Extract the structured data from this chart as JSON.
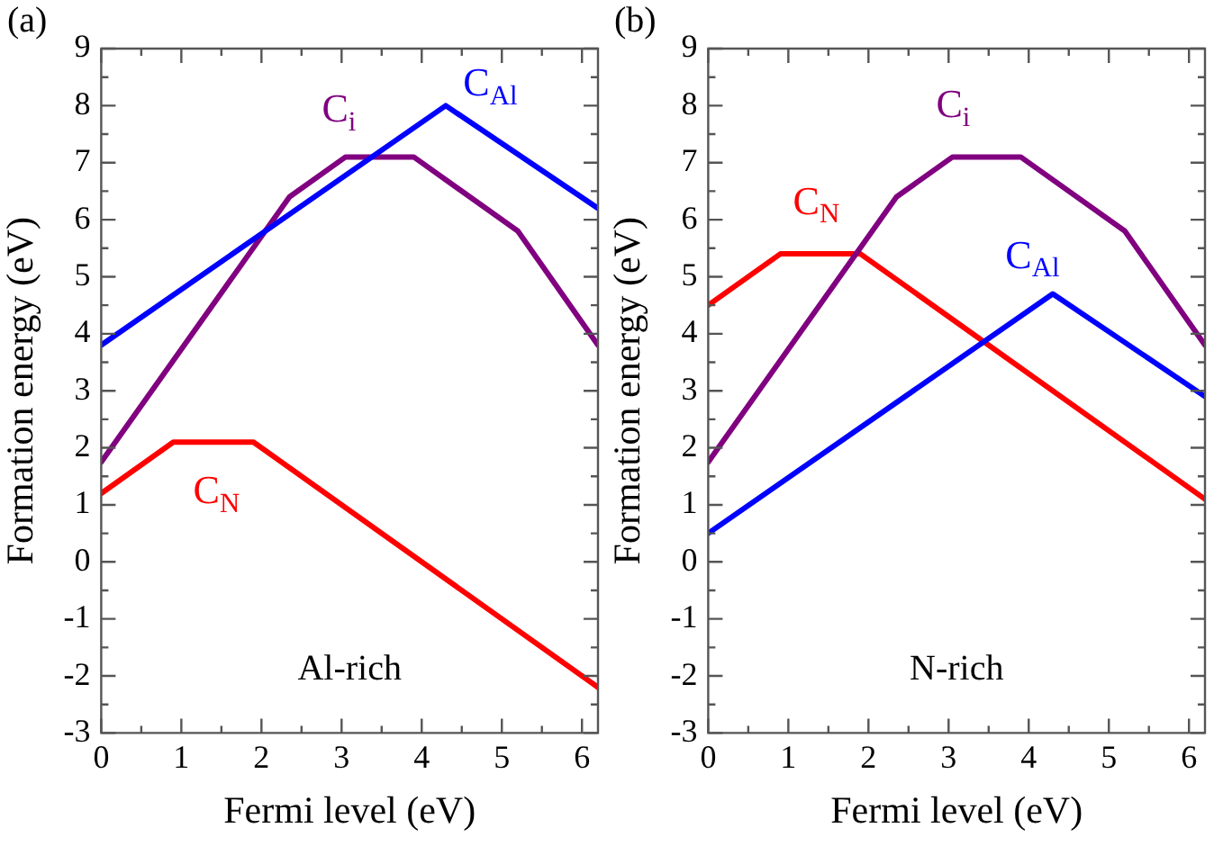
{
  "chart_data": [
    {
      "type": "line",
      "title": "(a)",
      "xlabel": "Fermi level (eV)",
      "ylabel": "Formation energy (eV)",
      "xlim": [
        0,
        6.2
      ],
      "ylim": [
        -3,
        9
      ],
      "xticks": [
        0,
        1,
        2,
        3,
        4,
        5,
        6
      ],
      "yticks": [
        -3,
        -2,
        -1,
        0,
        1,
        2,
        3,
        4,
        5,
        6,
        7,
        8,
        9
      ],
      "grid": false,
      "legend": false,
      "marker": "none",
      "line_style": "solid",
      "annotations": [
        "Al-rich"
      ],
      "series": [
        {
          "name": "C$_{Al}$",
          "color": "#0000ff",
          "x": [
            0,
            4.3,
            6.2
          ],
          "values": [
            3.8,
            8.0,
            6.2
          ]
        },
        {
          "name": "C$_{i}$",
          "color": "#800080",
          "x": [
            0,
            2.35,
            3.05,
            3.9,
            5.2,
            6.2
          ],
          "values": [
            1.75,
            6.4,
            7.1,
            7.1,
            5.8,
            3.8
          ]
        },
        {
          "name": "C$_{N}$",
          "color": "#ff0000",
          "x": [
            0,
            0.9,
            1.9,
            6.2
          ],
          "values": [
            1.2,
            2.1,
            2.1,
            -2.2
          ]
        }
      ]
    },
    {
      "type": "line",
      "title": "(b)",
      "xlabel": "Fermi level (eV)",
      "ylabel": "Formation energy (eV)",
      "xlim": [
        0,
        6.2
      ],
      "ylim": [
        -3,
        9
      ],
      "xticks": [
        0,
        1,
        2,
        3,
        4,
        5,
        6
      ],
      "yticks": [
        -3,
        -2,
        -1,
        0,
        1,
        2,
        3,
        4,
        5,
        6,
        7,
        8,
        9
      ],
      "grid": false,
      "legend": false,
      "marker": "none",
      "line_style": "solid",
      "annotations": [
        "N-rich"
      ],
      "series": [
        {
          "name": "C$_{Al}$",
          "color": "#0000ff",
          "x": [
            0,
            4.3,
            6.2
          ],
          "values": [
            0.5,
            4.7,
            2.9
          ]
        },
        {
          "name": "C$_{i}$",
          "color": "#800080",
          "x": [
            0,
            2.35,
            3.05,
            3.9,
            5.2,
            6.2
          ],
          "values": [
            1.75,
            6.4,
            7.1,
            7.1,
            5.8,
            3.8
          ]
        },
        {
          "name": "C$_{N}$",
          "color": "#ff0000",
          "x": [
            0,
            0.9,
            1.9,
            6.2
          ],
          "values": [
            4.5,
            5.4,
            5.4,
            1.1
          ]
        }
      ]
    }
  ]
}
